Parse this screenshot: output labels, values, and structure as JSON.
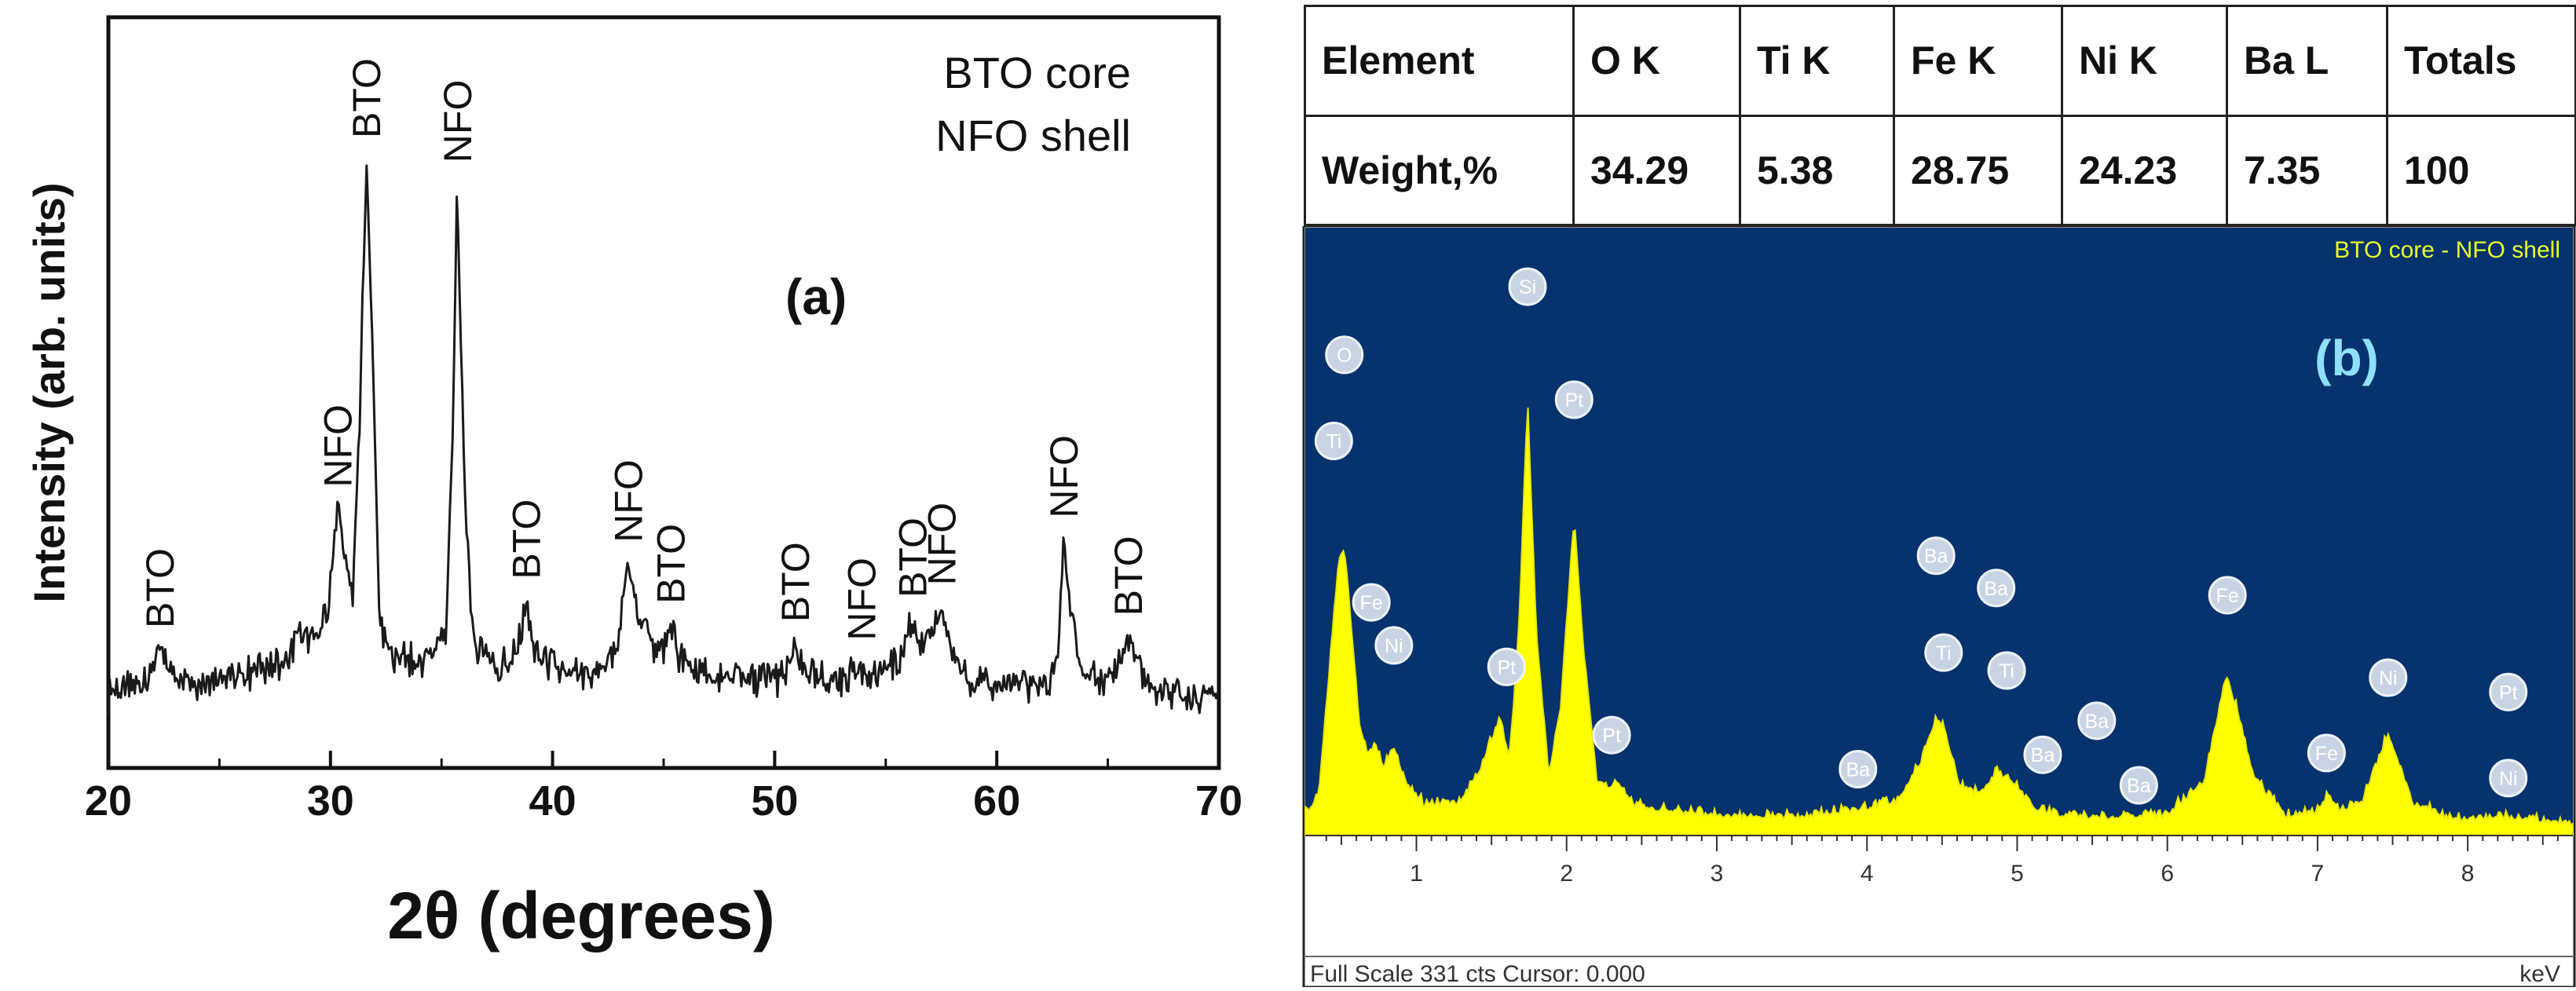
{
  "xrd": {
    "panel_label": "(a)",
    "legend_line1": "BTO core",
    "legend_line2": "NFO shell",
    "ylabel": "Intensity (arb. units)",
    "xlabel": "2θ (degrees)",
    "xlim": [
      20,
      70
    ],
    "xticks": [
      20,
      30,
      40,
      50,
      60,
      70
    ],
    "peak_annotations": [
      {
        "x": 22.3,
        "label": "BTO"
      },
      {
        "x": 30.3,
        "label": "NFO"
      },
      {
        "x": 31.6,
        "label": "BTO"
      },
      {
        "x": 35.7,
        "label": "NFO"
      },
      {
        "x": 38.8,
        "label": "BTO"
      },
      {
        "x": 43.4,
        "label": "NFO"
      },
      {
        "x": 45.3,
        "label": "BTO"
      },
      {
        "x": 50.9,
        "label": "BTO"
      },
      {
        "x": 53.9,
        "label": "NFO"
      },
      {
        "x": 56.2,
        "label": "BTO"
      },
      {
        "x": 57.5,
        "label": "NFO"
      },
      {
        "x": 63.0,
        "label": "NFO"
      },
      {
        "x": 65.9,
        "label": "BTO"
      }
    ]
  },
  "table": {
    "headers": [
      "Element",
      "O K",
      "Ti K",
      "Fe K",
      "Ni K",
      "Ba L",
      "Totals"
    ],
    "row_label": "Weight,%",
    "values": [
      "34.29",
      "5.38",
      "28.75",
      "24.23",
      "7.35",
      "100"
    ]
  },
  "eds": {
    "panel_label": "(b)",
    "title": "BTO core - NFO shell",
    "footer": "Full Scale 331 cts Cursor: 0.000",
    "unit": "keV",
    "xlim": [
      0.26,
      8.7
    ],
    "xticks": [
      1,
      2,
      3,
      4,
      5,
      6,
      7,
      8
    ],
    "element_labels": [
      {
        "el": "O",
        "x": 0.52,
        "counts": 268
      },
      {
        "el": "Ti",
        "x": 0.45,
        "counts": 220
      },
      {
        "el": "Fe",
        "x": 0.7,
        "counts": 130
      },
      {
        "el": "Ni",
        "x": 0.85,
        "counts": 106
      },
      {
        "el": "Pt",
        "x": 1.6,
        "counts": 94
      },
      {
        "el": "Si",
        "x": 1.74,
        "counts": 306
      },
      {
        "el": "Pt",
        "x": 2.05,
        "counts": 243
      },
      {
        "el": "Pt",
        "x": 2.3,
        "counts": 56
      },
      {
        "el": "Ba",
        "x": 3.94,
        "counts": 37
      },
      {
        "el": "Ba",
        "x": 4.46,
        "counts": 156
      },
      {
        "el": "Ti",
        "x": 4.51,
        "counts": 102
      },
      {
        "el": "Ba",
        "x": 4.86,
        "counts": 138
      },
      {
        "el": "Ti",
        "x": 4.93,
        "counts": 92
      },
      {
        "el": "Ba",
        "x": 5.17,
        "counts": 45
      },
      {
        "el": "Ba",
        "x": 5.53,
        "counts": 64
      },
      {
        "el": "Ba",
        "x": 5.81,
        "counts": 28
      },
      {
        "el": "Fe",
        "x": 6.4,
        "counts": 134
      },
      {
        "el": "Fe",
        "x": 7.06,
        "counts": 46
      },
      {
        "el": "Ni",
        "x": 7.47,
        "counts": 88
      },
      {
        "el": "Pt",
        "x": 8.27,
        "counts": 80
      },
      {
        "el": "Ni",
        "x": 8.27,
        "counts": 32
      }
    ]
  },
  "chart_data": [
    {
      "type": "line",
      "title": "",
      "xlabel": "2θ (degrees)",
      "ylabel": "Intensity (arb. units)",
      "xlim": [
        20,
        70
      ],
      "ylim": [
        0,
        1
      ],
      "grid": false,
      "series": [
        {
          "x": [
            20,
            21,
            21.8,
            22.3,
            22.8,
            24,
            25.5,
            27,
            28.2,
            28.5,
            29.3,
            29.9,
            30.3,
            30.7,
            31.0,
            31.3,
            31.6,
            31.9,
            32.2,
            32.8,
            34,
            35.2,
            35.5,
            35.7,
            36.0,
            36.4,
            37.5,
            38.4,
            38.8,
            39.2,
            40.5,
            42,
            43.0,
            43.4,
            43.8,
            44.3,
            44.9,
            45.3,
            45.7,
            47,
            49,
            50.5,
            50.9,
            51.3,
            52.5,
            53.5,
            53.9,
            54.4,
            55.5,
            56.0,
            56.2,
            56.6,
            57.2,
            57.5,
            57.9,
            59,
            61,
            62.5,
            62.8,
            63.0,
            63.3,
            63.8,
            65,
            65.6,
            65.9,
            66.3,
            67,
            68.5,
            70
          ],
          "y": [
            0.03,
            0.04,
            0.06,
            0.1,
            0.06,
            0.05,
            0.06,
            0.07,
            0.09,
            0.13,
            0.11,
            0.17,
            0.33,
            0.24,
            0.19,
            0.45,
            0.9,
            0.6,
            0.15,
            0.09,
            0.08,
            0.12,
            0.45,
            0.86,
            0.4,
            0.12,
            0.07,
            0.09,
            0.18,
            0.09,
            0.06,
            0.06,
            0.12,
            0.24,
            0.18,
            0.12,
            0.09,
            0.14,
            0.09,
            0.06,
            0.05,
            0.06,
            0.11,
            0.06,
            0.05,
            0.06,
            0.08,
            0.05,
            0.08,
            0.13,
            0.15,
            0.1,
            0.13,
            0.17,
            0.1,
            0.05,
            0.04,
            0.05,
            0.12,
            0.28,
            0.18,
            0.06,
            0.05,
            0.08,
            0.12,
            0.07,
            0.04,
            0.03,
            0.03
          ]
        }
      ]
    },
    {
      "type": "area",
      "title": "BTO core - NFO shell",
      "xlabel": "keV",
      "ylabel": "",
      "xlim": [
        0.26,
        8.7
      ],
      "ylim": [
        0,
        331
      ],
      "grid": false,
      "series": [
        {
          "x": [
            0.26,
            0.35,
            0.42,
            0.48,
            0.52,
            0.56,
            0.62,
            0.68,
            0.72,
            0.78,
            0.85,
            0.92,
            1.05,
            1.3,
            1.45,
            1.55,
            1.62,
            1.68,
            1.74,
            1.8,
            1.88,
            1.96,
            2.05,
            2.12,
            2.2,
            2.28,
            2.33,
            2.45,
            3.0,
            3.5,
            3.94,
            4.2,
            4.36,
            4.46,
            4.51,
            4.62,
            4.75,
            4.86,
            4.98,
            5.1,
            5.3,
            5.6,
            6.0,
            6.25,
            6.35,
            6.4,
            6.46,
            6.58,
            6.8,
            6.98,
            7.06,
            7.14,
            7.3,
            7.42,
            7.47,
            7.52,
            7.64,
            7.9,
            8.27,
            8.5,
            8.7
          ],
          "y": [
            10,
            22,
            90,
            150,
            160,
            120,
            60,
            44,
            50,
            38,
            48,
            30,
            16,
            18,
            40,
            64,
            42,
            110,
            240,
            110,
            32,
            70,
            175,
            95,
            30,
            24,
            30,
            15,
            10,
            9,
            13,
            18,
            40,
            64,
            60,
            26,
            22,
            34,
            28,
            14,
            10,
            9,
            10,
            30,
            72,
            86,
            70,
            30,
            9,
            12,
            20,
            12,
            18,
            45,
            56,
            44,
            16,
            8,
            9,
            7,
            6
          ]
        }
      ]
    }
  ]
}
